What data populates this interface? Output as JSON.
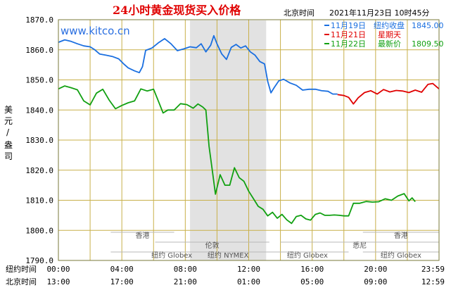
{
  "title": "24小时黄金现货买入价格",
  "header_location": "北京时间",
  "header_datetime": "2021年11月23日 10时45分",
  "brand": "www.kitco.cn",
  "legend": [
    {
      "date": "11月19日",
      "label": "纽约收盘",
      "value": "1845.00",
      "color": "#1a6fe0"
    },
    {
      "date": "11月21日",
      "label": "星期天",
      "value": "",
      "color": "#e00000"
    },
    {
      "date": "11月22日",
      "label": "最新价",
      "value": "1809.50",
      "color": "#11a011"
    }
  ],
  "y_axis_label": [
    "美",
    "元",
    "/",
    "盎",
    "司"
  ],
  "y_ticks": [
    "1870.0",
    "1860.0",
    "1850.0",
    "1840.0",
    "1830.0",
    "1820.0",
    "1810.0",
    "1800.0",
    "1790.0"
  ],
  "x_rows": [
    {
      "label": "纽约时间",
      "ticks": [
        "00:00",
        "04:00",
        "08:00",
        "12:00",
        "16:00",
        "20:00",
        "23:59"
      ]
    },
    {
      "label": "北京时间",
      "ticks": [
        "13:00",
        "17:00",
        "21:00",
        "01:00",
        "05:00",
        "09:00",
        "12:59"
      ]
    }
  ],
  "sessions": [
    {
      "name": "香港",
      "row": 1
    },
    {
      "name": "香港",
      "row": 1
    },
    {
      "name": "伦敦",
      "row": 2
    },
    {
      "name": "悉尼",
      "row": 2
    },
    {
      "name": "纽约 Globex",
      "row": 3
    },
    {
      "name": "纽约 NYMEX",
      "row": 3
    },
    {
      "name": "纽约 Globex",
      "row": 3
    },
    {
      "name": "纽约 Globex",
      "row": 3
    }
  ],
  "colors": {
    "frame": "#7a7a3a",
    "grid": "#c8b04a",
    "shade": "#e2e2e2"
  },
  "chart_data": {
    "type": "line",
    "x_unit": "hours since 00:00 New York time",
    "xlim": [
      0,
      24
    ],
    "ylim": [
      1790,
      1870
    ],
    "series": [
      {
        "name": "11月19日",
        "color": "#1a6fe0",
        "points": [
          [
            0,
            1862.5
          ],
          [
            0.4,
            1863.3
          ],
          [
            0.8,
            1862.8
          ],
          [
            1.2,
            1862.0
          ],
          [
            1.6,
            1861.3
          ],
          [
            2,
            1861.0
          ],
          [
            2.3,
            1860.0
          ],
          [
            2.6,
            1858.6
          ],
          [
            3,
            1858.2
          ],
          [
            3.4,
            1857.8
          ],
          [
            3.8,
            1857.0
          ],
          [
            4.1,
            1855.4
          ],
          [
            4.4,
            1854.0
          ],
          [
            4.8,
            1853.0
          ],
          [
            5.1,
            1852.4
          ],
          [
            5.3,
            1854.4
          ],
          [
            5.5,
            1859.8
          ],
          [
            5.9,
            1860.6
          ],
          [
            6.3,
            1862.3
          ],
          [
            6.7,
            1863.7
          ],
          [
            7.1,
            1862.0
          ],
          [
            7.5,
            1859.7
          ],
          [
            7.9,
            1860.3
          ],
          [
            8.3,
            1861.0
          ],
          [
            8.7,
            1860.7
          ],
          [
            9.0,
            1862.0
          ],
          [
            9.3,
            1859.3
          ],
          [
            9.6,
            1861.5
          ],
          [
            9.8,
            1864.7
          ],
          [
            10.0,
            1862.0
          ],
          [
            10.3,
            1858.6
          ],
          [
            10.6,
            1856.8
          ],
          [
            10.9,
            1860.8
          ],
          [
            11.2,
            1861.8
          ],
          [
            11.5,
            1860.6
          ],
          [
            11.8,
            1861.3
          ],
          [
            12.1,
            1859.3
          ],
          [
            12.4,
            1858.2
          ],
          [
            12.7,
            1856.1
          ],
          [
            13.0,
            1855.3
          ],
          [
            13.2,
            1849.5
          ],
          [
            13.4,
            1845.7
          ],
          [
            13.6,
            1847.4
          ],
          [
            13.9,
            1849.7
          ],
          [
            14.2,
            1850.2
          ],
          [
            14.6,
            1849.0
          ],
          [
            15.0,
            1848.2
          ],
          [
            15.4,
            1846.6
          ],
          [
            15.8,
            1846.9
          ],
          [
            16.2,
            1846.9
          ],
          [
            16.6,
            1846.4
          ],
          [
            17.0,
            1846.2
          ],
          [
            17.3,
            1845.3
          ],
          [
            17.6,
            1845.3
          ]
        ]
      },
      {
        "name": "11月21日",
        "color": "#e00000",
        "points": [
          [
            17.6,
            1845.1
          ],
          [
            18.0,
            1844.8
          ],
          [
            18.3,
            1844.2
          ],
          [
            18.6,
            1842.0
          ],
          [
            18.9,
            1844.0
          ],
          [
            19.3,
            1845.8
          ],
          [
            19.7,
            1846.4
          ],
          [
            20.1,
            1845.3
          ],
          [
            20.5,
            1846.8
          ],
          [
            20.9,
            1846.0
          ],
          [
            21.3,
            1846.5
          ],
          [
            21.7,
            1846.3
          ],
          [
            22.1,
            1845.8
          ],
          [
            22.5,
            1846.6
          ],
          [
            22.9,
            1845.9
          ],
          [
            23.3,
            1848.5
          ],
          [
            23.6,
            1848.8
          ],
          [
            24.0,
            1847.0
          ]
        ]
      },
      {
        "name": "11月22日",
        "color": "#11a011",
        "points": [
          [
            0,
            1847.0
          ],
          [
            0.4,
            1848.0
          ],
          [
            0.8,
            1847.4
          ],
          [
            1.2,
            1846.7
          ],
          [
            1.6,
            1843.0
          ],
          [
            2.0,
            1841.7
          ],
          [
            2.4,
            1845.6
          ],
          [
            2.8,
            1846.9
          ],
          [
            3.2,
            1843.3
          ],
          [
            3.6,
            1840.4
          ],
          [
            4.0,
            1841.5
          ],
          [
            4.4,
            1842.4
          ],
          [
            4.8,
            1843.0
          ],
          [
            5.2,
            1847.0
          ],
          [
            5.6,
            1846.3
          ],
          [
            6.0,
            1846.9
          ],
          [
            6.3,
            1843.0
          ],
          [
            6.6,
            1839.0
          ],
          [
            6.9,
            1840.0
          ],
          [
            7.3,
            1840.0
          ],
          [
            7.7,
            1842.1
          ],
          [
            8.1,
            1841.8
          ],
          [
            8.5,
            1840.6
          ],
          [
            8.8,
            1842.0
          ],
          [
            9.1,
            1841.0
          ],
          [
            9.3,
            1840.0
          ],
          [
            9.5,
            1828.0
          ],
          [
            9.7,
            1820.0
          ],
          [
            9.9,
            1812.0
          ],
          [
            10.2,
            1818.5
          ],
          [
            10.5,
            1815.0
          ],
          [
            10.8,
            1815.0
          ],
          [
            11.1,
            1820.8
          ],
          [
            11.4,
            1817.5
          ],
          [
            11.7,
            1816.3
          ],
          [
            12.0,
            1813.0
          ],
          [
            12.3,
            1810.5
          ],
          [
            12.6,
            1808.0
          ],
          [
            12.9,
            1807.0
          ],
          [
            13.2,
            1804.8
          ],
          [
            13.5,
            1806.0
          ],
          [
            13.8,
            1804.0
          ],
          [
            14.1,
            1805.3
          ],
          [
            14.4,
            1803.5
          ],
          [
            14.7,
            1802.3
          ],
          [
            15.0,
            1804.6
          ],
          [
            15.3,
            1805.0
          ],
          [
            15.6,
            1803.8
          ],
          [
            15.9,
            1803.4
          ],
          [
            16.2,
            1805.3
          ],
          [
            16.5,
            1805.8
          ],
          [
            16.8,
            1805.0
          ],
          [
            17.1,
            1805.0
          ],
          [
            17.4,
            1805.1
          ],
          [
            17.7,
            1805.0
          ],
          [
            18.0,
            1804.8
          ],
          [
            18.3,
            1804.8
          ],
          [
            18.6,
            1809.0
          ],
          [
            19.0,
            1809.0
          ],
          [
            19.4,
            1809.6
          ],
          [
            19.8,
            1809.4
          ],
          [
            20.2,
            1809.5
          ],
          [
            20.6,
            1810.5
          ],
          [
            21.0,
            1810.0
          ],
          [
            21.4,
            1811.4
          ],
          [
            21.8,
            1812.2
          ],
          [
            22.1,
            1809.8
          ],
          [
            22.3,
            1810.8
          ],
          [
            22.5,
            1809.5
          ]
        ]
      }
    ],
    "segments": [
      {
        "series": "11月19日",
        "solid": [
          [
            0,
            17.1
          ],
          [
            17.6,
            17.6
          ]
        ]
      }
    ],
    "shaded_x": [
      8.3,
      13.1
    ],
    "grid": true
  }
}
